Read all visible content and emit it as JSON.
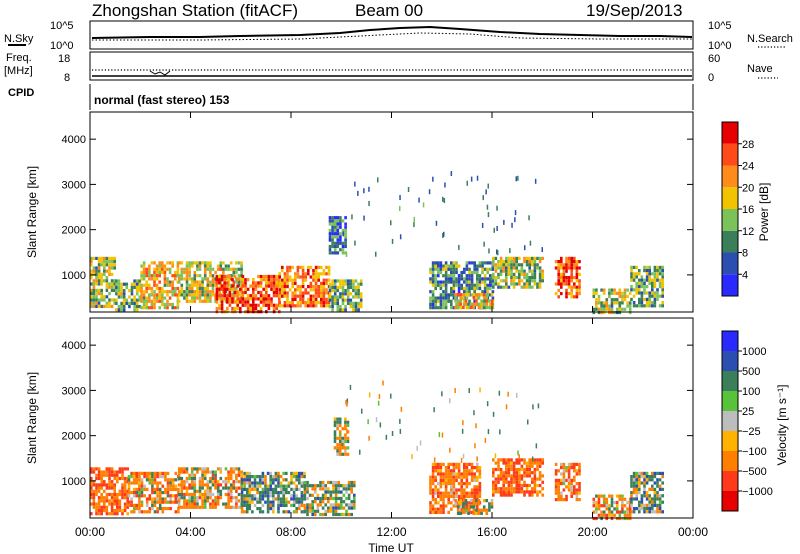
{
  "header": {
    "station": "Zhongshan Station (fitACF)",
    "beam": "Beam 00",
    "date": "19/Sep/2013"
  },
  "noise_panel": {
    "left_label": "N.Sky",
    "right_label": "N.Search",
    "left_ticks": [
      "10^5",
      "10^0"
    ],
    "right_ticks": [
      "10^5",
      "10^0"
    ]
  },
  "freq_panel": {
    "left_label_top": "Freq.",
    "left_label_unit": "[MHz]",
    "left_ticks": [
      "18",
      "8"
    ],
    "right_label": "Nave",
    "right_ticks": [
      "60",
      "0"
    ],
    "cpid_label": "CPID"
  },
  "mode_label": "normal (fast stereo) 153",
  "chart_data": [
    {
      "type": "heatmap",
      "name": "power",
      "ylabel": "Slant Range [km]",
      "xlabel": "Time UT",
      "ylim": [
        180,
        4600
      ],
      "yticks": [
        1000,
        2000,
        3000,
        4000
      ],
      "xlim": [
        0,
        24
      ],
      "xtick_labels": [
        "00:00",
        "04:00",
        "08:00",
        "12:00",
        "16:00",
        "20:00",
        "00:00"
      ],
      "colorbar_label": "Power [dB]",
      "colorbar_ticks": [
        "4",
        "8",
        "12",
        "16",
        "20",
        "24",
        "28"
      ],
      "colorbar_colors": [
        "#2a2aff",
        "#2b4fb0",
        "#3a7f5a",
        "#7cc25a",
        "#f2c400",
        "#ff8c1a",
        "#ff4a1a",
        "#e60000"
      ],
      "colorbar_range": [
        0,
        30
      ],
      "echo_regions": [
        {
          "x": [
            0.0,
            1.0
          ],
          "y": [
            300,
            1400
          ],
          "level": 14
        },
        {
          "x": [
            1.0,
            2.0
          ],
          "y": [
            250,
            900
          ],
          "level": 12
        },
        {
          "x": [
            2.0,
            3.5
          ],
          "y": [
            300,
            1300
          ],
          "level": 18
        },
        {
          "x": [
            3.5,
            6.0
          ],
          "y": [
            400,
            1300
          ],
          "level": 16
        },
        {
          "x": [
            5.0,
            7.5
          ],
          "y": [
            200,
            1000
          ],
          "level": 24
        },
        {
          "x": [
            7.5,
            9.5
          ],
          "y": [
            300,
            1200
          ],
          "level": 22
        },
        {
          "x": [
            9.5,
            10.8
          ],
          "y": [
            250,
            900
          ],
          "level": 12
        },
        {
          "x": [
            9.5,
            10.2
          ],
          "y": [
            1500,
            2300
          ],
          "level": 8
        },
        {
          "x": [
            13.5,
            16.0
          ],
          "y": [
            300,
            1300
          ],
          "level": 10
        },
        {
          "x": [
            14.5,
            16.0
          ],
          "y": [
            250,
            600
          ],
          "level": 18
        },
        {
          "x": [
            16.0,
            18.0
          ],
          "y": [
            700,
            1400
          ],
          "level": 14
        },
        {
          "x": [
            18.5,
            19.5
          ],
          "y": [
            500,
            1400
          ],
          "level": 24
        },
        {
          "x": [
            20.0,
            21.5
          ],
          "y": [
            200,
            700
          ],
          "level": 14
        },
        {
          "x": [
            21.5,
            22.8
          ],
          "y": [
            300,
            1200
          ],
          "level": 12
        }
      ]
    },
    {
      "type": "heatmap",
      "name": "velocity",
      "ylabel": "Slant Range [km]",
      "xlabel": "Time UT",
      "ylim": [
        180,
        4600
      ],
      "yticks": [
        1000,
        2000,
        3000,
        4000
      ],
      "xlim": [
        0,
        24
      ],
      "xtick_labels": [
        "00:00",
        "04:00",
        "08:00",
        "12:00",
        "16:00",
        "20:00",
        "00:00"
      ],
      "colorbar_label": "Velocity [m s⁻¹]",
      "colorbar_ticks": [
        "1000",
        "500",
        "100",
        "25",
        "−25",
        "−100",
        "−500",
        "−1000"
      ],
      "colorbar_colors": [
        "#2a2aff",
        "#2b4fb0",
        "#3a7f5a",
        "#57c23a",
        "#bdbdbd",
        "#ffb300",
        "#ff7f00",
        "#ff3a1a",
        "#e60000"
      ],
      "echo_regions": [
        {
          "x": [
            0.0,
            1.5
          ],
          "y": [
            250,
            1300
          ],
          "level": -300
        },
        {
          "x": [
            1.5,
            3.5
          ],
          "y": [
            300,
            1200
          ],
          "level": -150
        },
        {
          "x": [
            3.5,
            6.0
          ],
          "y": [
            400,
            1300
          ],
          "level": -120
        },
        {
          "x": [
            6.0,
            8.5
          ],
          "y": [
            300,
            1200
          ],
          "level": 150
        },
        {
          "x": [
            8.5,
            10.5
          ],
          "y": [
            250,
            1000
          ],
          "level": 80
        },
        {
          "x": [
            9.7,
            10.3
          ],
          "y": [
            1600,
            2400
          ],
          "level": 0
        },
        {
          "x": [
            13.5,
            15.5
          ],
          "y": [
            300,
            1400
          ],
          "level": -250
        },
        {
          "x": [
            14.5,
            16.0
          ],
          "y": [
            250,
            600
          ],
          "level": 0
        },
        {
          "x": [
            16.0,
            18.0
          ],
          "y": [
            700,
            1500
          ],
          "level": -300
        },
        {
          "x": [
            18.5,
            19.5
          ],
          "y": [
            600,
            1400
          ],
          "level": -200
        },
        {
          "x": [
            20.0,
            21.5
          ],
          "y": [
            200,
            700
          ],
          "level": -150
        },
        {
          "x": [
            21.5,
            22.8
          ],
          "y": [
            300,
            1200
          ],
          "level": 120
        }
      ]
    }
  ]
}
